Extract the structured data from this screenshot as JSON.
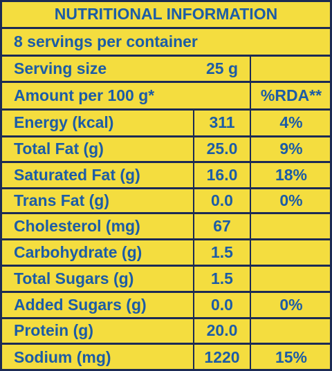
{
  "header": {
    "title": "NUTRITIONAL INFORMATION",
    "servings": "8 servings per container"
  },
  "serving_size": {
    "label": "Serving size",
    "value": "25 g"
  },
  "table": {
    "amount_header": "Amount per 100 g*",
    "rda_header": "%RDA**",
    "rows": [
      [
        "Energy (kcal)",
        "311",
        "4%"
      ],
      [
        "Total Fat (g)",
        "25.0",
        "9%"
      ],
      [
        "Saturated Fat (g)",
        "16.0",
        "18%"
      ],
      [
        "Trans Fat (g)",
        "0.0",
        "0%"
      ],
      [
        "Cholesterol (mg)",
        "67"
      ],
      [
        "Carbohydrate (g)",
        "1.5"
      ],
      [
        "Total Sugars (g)",
        "1.5"
      ],
      [
        "Added Sugars (g)",
        "0.0",
        "0%"
      ],
      [
        "Protein (g)",
        "20.0"
      ],
      [
        "Sodium (mg)",
        "1220",
        "15%"
      ]
    ]
  }
}
